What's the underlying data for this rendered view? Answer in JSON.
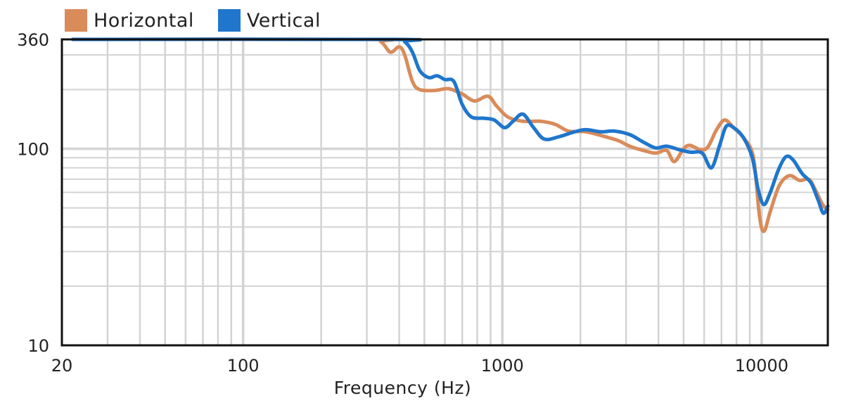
{
  "chart_data": {
    "type": "line",
    "title": "",
    "xlabel": "Frequency (Hz)",
    "ylabel": "",
    "x_scale": "log",
    "y_scale": "log",
    "xlim": [
      20,
      18000
    ],
    "ylim": [
      10,
      360
    ],
    "x_ticks": [
      20,
      100,
      1000,
      10000
    ],
    "x_tick_labels": [
      "20",
      "100",
      "1000",
      "10000"
    ],
    "y_ticks": [
      10,
      100,
      360
    ],
    "y_tick_labels": [
      "10",
      "100",
      "360"
    ],
    "grid": true,
    "legend_position": "top-left",
    "series": [
      {
        "name": "Horizontal",
        "color": "#D98B5A",
        "points": [
          [
            22,
            360
          ],
          [
            300,
            360
          ],
          [
            340,
            350
          ],
          [
            370,
            310
          ],
          [
            400,
            330
          ],
          [
            420,
            300
          ],
          [
            450,
            220
          ],
          [
            480,
            200
          ],
          [
            550,
            198
          ],
          [
            620,
            202
          ],
          [
            700,
            190
          ],
          [
            780,
            175
          ],
          [
            880,
            185
          ],
          [
            950,
            165
          ],
          [
            1050,
            145
          ],
          [
            1200,
            138
          ],
          [
            1400,
            138
          ],
          [
            1600,
            133
          ],
          [
            1800,
            123
          ],
          [
            2100,
            122
          ],
          [
            2500,
            115
          ],
          [
            2800,
            110
          ],
          [
            3100,
            103
          ],
          [
            3500,
            98
          ],
          [
            3900,
            95
          ],
          [
            4300,
            98
          ],
          [
            4600,
            86
          ],
          [
            5000,
            100
          ],
          [
            5300,
            104
          ],
          [
            5800,
            99
          ],
          [
            6200,
            102
          ],
          [
            6700,
            125
          ],
          [
            7200,
            140
          ],
          [
            7800,
            128
          ],
          [
            8600,
            112
          ],
          [
            9300,
            90
          ],
          [
            9800,
            46
          ],
          [
            10200,
            38
          ],
          [
            10800,
            48
          ],
          [
            11700,
            65
          ],
          [
            12800,
            73
          ],
          [
            14000,
            69
          ],
          [
            15200,
            70
          ],
          [
            16000,
            63
          ],
          [
            17200,
            52
          ],
          [
            18000,
            49
          ]
        ]
      },
      {
        "name": "Vertical",
        "color": "#1F76CC",
        "points": [
          [
            22,
            360
          ],
          [
            380,
            360
          ],
          [
            420,
            350
          ],
          [
            450,
            310
          ],
          [
            480,
            250
          ],
          [
            520,
            230
          ],
          [
            560,
            235
          ],
          [
            600,
            225
          ],
          [
            650,
            220
          ],
          [
            700,
            168
          ],
          [
            760,
            145
          ],
          [
            850,
            143
          ],
          [
            930,
            140
          ],
          [
            1020,
            128
          ],
          [
            1100,
            138
          ],
          [
            1200,
            150
          ],
          [
            1320,
            128
          ],
          [
            1450,
            112
          ],
          [
            1650,
            115
          ],
          [
            1900,
            122
          ],
          [
            2100,
            125
          ],
          [
            2400,
            122
          ],
          [
            2700,
            123
          ],
          [
            3100,
            118
          ],
          [
            3500,
            108
          ],
          [
            3900,
            101
          ],
          [
            4300,
            103
          ],
          [
            4800,
            99
          ],
          [
            5300,
            96
          ],
          [
            5900,
            95
          ],
          [
            6400,
            80
          ],
          [
            6900,
            105
          ],
          [
            7300,
            130
          ],
          [
            7800,
            128
          ],
          [
            8500,
            114
          ],
          [
            9200,
            90
          ],
          [
            9700,
            62
          ],
          [
            10200,
            52
          ],
          [
            10800,
            60
          ],
          [
            11600,
            78
          ],
          [
            12400,
            91
          ],
          [
            13200,
            88
          ],
          [
            14300,
            75
          ],
          [
            15500,
            67
          ],
          [
            16500,
            55
          ],
          [
            17300,
            47
          ],
          [
            18000,
            51
          ]
        ]
      }
    ]
  }
}
